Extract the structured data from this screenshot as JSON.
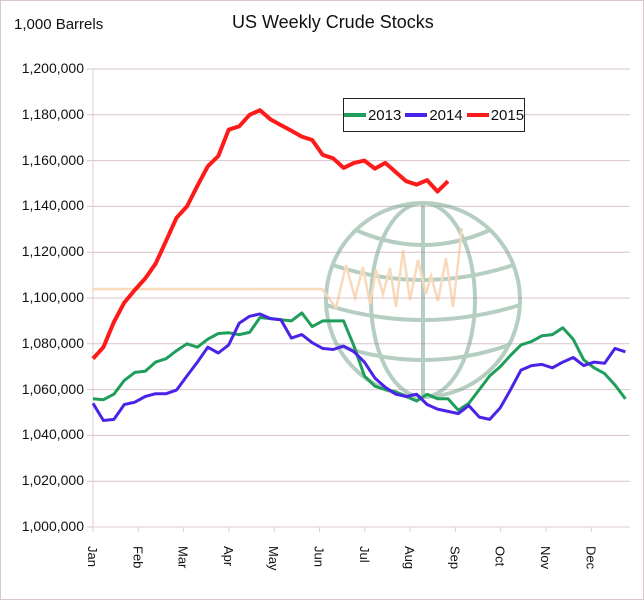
{
  "chart_data": {
    "type": "line",
    "title": "US Weekly Crude Stocks",
    "ylabel": "1,000 Barrels",
    "xlabel": "",
    "ylim": [
      1000000,
      1200000
    ],
    "ytick_step": 20000,
    "yticks": [
      "1,000,000",
      "1,020,000",
      "1,040,000",
      "1,060,000",
      "1,080,000",
      "1,100,000",
      "1,120,000",
      "1,140,000",
      "1,160,000",
      "1,180,000",
      "1,200,000"
    ],
    "xticks": [
      "Jan",
      "Feb",
      "Mar",
      "Apr",
      "May",
      "Jun",
      "Jul",
      "Aug",
      "Sep",
      "Oct",
      "Nov",
      "Dec"
    ],
    "x_unit": "week of year",
    "xlim": [
      1,
      52
    ],
    "grid": true,
    "legend_position": "top-right",
    "series": [
      {
        "name": "2013",
        "color": "#1e9e5a",
        "values": [
          1056000,
          1055600,
          1058000,
          1064000,
          1067500,
          1068000,
          1072000,
          1073500,
          1077000,
          1080000,
          1078500,
          1082000,
          1084500,
          1084800,
          1084000,
          1085000,
          1091500,
          1091000,
          1090500,
          1090000,
          1093500,
          1087500,
          1090000,
          1090000,
          1090000,
          1079000,
          1066000,
          1061500,
          1060000,
          1059000,
          1057000,
          1055000,
          1058000,
          1056000,
          1056000,
          1051000,
          1054000,
          1060000,
          1066000,
          1070000,
          1075000,
          1079500,
          1081000,
          1083500,
          1084000,
          1087000,
          1082000,
          1073000,
          1069500,
          1067000,
          1062000,
          1056000
        ]
      },
      {
        "name": "2014",
        "color": "#4a22e8",
        "values": [
          1054000,
          1046500,
          1047000,
          1053500,
          1054500,
          1057000,
          1058200,
          1058200,
          1059800,
          1066000,
          1072000,
          1078500,
          1076000,
          1079500,
          1089000,
          1092000,
          1093000,
          1091000,
          1090500,
          1082500,
          1084000,
          1080500,
          1078000,
          1077500,
          1079000,
          1076500,
          1072000,
          1065000,
          1061000,
          1058000,
          1057000,
          1058000,
          1053500,
          1051500,
          1050500,
          1049500,
          1053000,
          1048000,
          1047000,
          1052000,
          1060000,
          1068500,
          1070500,
          1071000,
          1069500,
          1072000,
          1074000,
          1070500,
          1072000,
          1071500,
          1078000,
          1076500
        ]
      },
      {
        "name": "2015",
        "color": "#ff1a1a",
        "values": [
          1073500,
          1078500,
          1089500,
          1098000,
          1103500,
          1108500,
          1115000,
          1125000,
          1135000,
          1140000,
          1149000,
          1157500,
          1162000,
          1173500,
          1175000,
          1180000,
          1182000,
          1178000,
          1175500,
          1173000,
          1170500,
          1169000,
          1162500,
          1161000,
          1156800,
          1159000,
          1160000,
          1156500,
          1159000,
          1155000,
          1151000,
          1149500,
          1151500,
          1146500,
          1151000
        ]
      }
    ]
  },
  "watermark": {
    "icon": "globe-with-chart-line-icon"
  }
}
